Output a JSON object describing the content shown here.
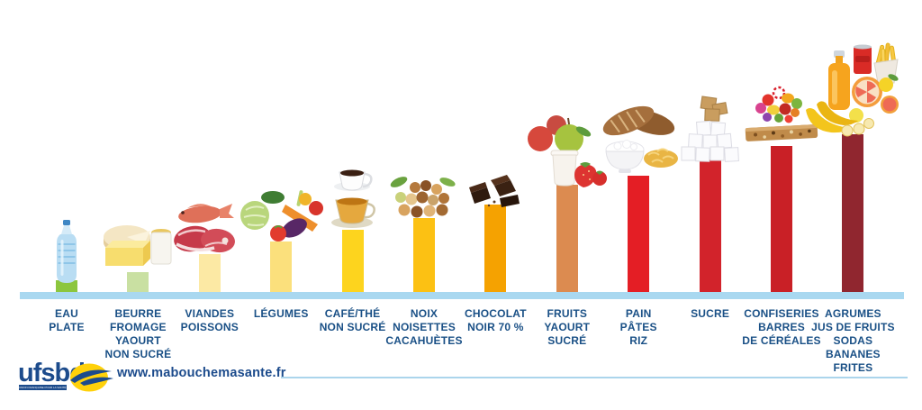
{
  "chart_data": {
    "type": "bar",
    "title": "",
    "xlabel": "",
    "ylabel": "",
    "axes_shown": false,
    "gridlines": false,
    "legend": false,
    "baseline_color": "#a9d8f0",
    "value_note": "no numeric axis shown; values are bar heights in px expressing increasing risk from left to right",
    "ylim": [
      0,
      176
    ],
    "categories": [
      "EAU PLATE",
      "BEURRE FROMAGE YAOURT NON SUCRÉ",
      "VIANDES POISSONS",
      "LÉGUMES",
      "CAFÉ/THÉ NON SUCRÉ",
      "NOIX NOISETTES CACAHUÈTES",
      "CHOCOLAT NOIR 70 %",
      "FRUITS YAOURT SUCRÉ",
      "PAIN PÂTES RIZ",
      "SUCRE",
      "CONFISERIES BARRES DE CÉRÉALES",
      "AGRUMES JUS DE FRUITS SODAS BANANES FRITES"
    ],
    "label_lines": [
      [
        "EAU",
        "PLATE"
      ],
      [
        "BEURRE",
        "FROMAGE",
        "YAOURT",
        "NON SUCRÉ"
      ],
      [
        "VIANDES",
        "POISSONS"
      ],
      [
        "LÉGUMES"
      ],
      [
        "CAFÉ/THÉ",
        "NON SUCRÉ"
      ],
      [
        "NOIX",
        "NOISETTES",
        "CACAHUÈTES"
      ],
      [
        "CHOCOLAT",
        "NOIR 70 %"
      ],
      [
        "FRUITS",
        "YAOURT",
        "SUCRÉ"
      ],
      [
        "PAIN",
        "PÂTES",
        "RIZ"
      ],
      [
        "SUCRE"
      ],
      [
        "CONFISERIES",
        "BARRES",
        "DE CÉRÉALES"
      ],
      [
        "AGRUMES",
        "JUS DE FRUITS",
        "SODAS",
        "BANANES",
        "FRITES"
      ]
    ],
    "values": [
      13,
      22,
      42,
      56,
      69,
      82,
      97,
      119,
      129,
      147,
      162,
      175
    ],
    "bar_colors": [
      "#8cc63e",
      "#c9e0a2",
      "#fce9a4",
      "#fbe07c",
      "#fdd41e",
      "#fcc113",
      "#f5a201",
      "#dc8b50",
      "#e41e25",
      "#d2232b",
      "#c92026",
      "#90262f"
    ],
    "icons": [
      "water-bottle-icon",
      "cheese-dairy-icon",
      "meat-fish-icon",
      "vegetables-icon",
      "coffee-tea-icon",
      "nuts-icon",
      "chocolate-icon",
      "fruits-yogurt-icon",
      "bread-rice-pasta-icon",
      "sugar-cubes-icon",
      "candies-cereal-bar-icon",
      "sodas-fruits-fries-icon"
    ],
    "label_color": "#1a5086"
  },
  "footer": {
    "logo_text": "ufsbd",
    "logo_tagline": "UNION FRANÇAISE POUR LA SANTÉ BUCCO-DENTAIRE",
    "website": "www.mabouchemasante.fr",
    "colors": {
      "logo_blue": "#1c4b8c",
      "logo_yellow": "#ffd10a",
      "divider_blue": "#abd5ec"
    }
  }
}
